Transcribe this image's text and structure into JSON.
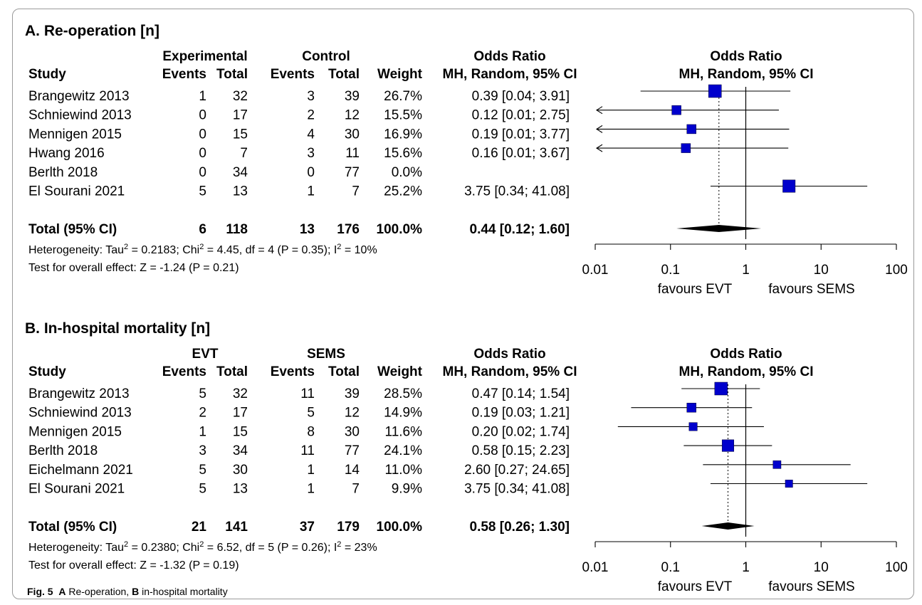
{
  "caption": {
    "fig": "Fig. 5",
    "a_letter": "A",
    "a_text": " Re-operation, ",
    "b_letter": "B",
    "b_text": " in-hospital mortality"
  },
  "colors": {
    "box": "#0000cc",
    "diamond": "#000000",
    "border": "#9a9a9a"
  },
  "chart_data": [
    {
      "type": "forest",
      "panel_title": "A. Re-operation [n]",
      "group1_label": "Experimental",
      "group2_label": "Control",
      "col_headers": {
        "study": "Study",
        "events1": "Events",
        "total1": "Total",
        "events2": "Events",
        "total2": "Total",
        "weight": "Weight",
        "or_top": "Odds Ratio",
        "or_bottom": "MH, Random, 95% CI"
      },
      "plot_header_top": "Odds Ratio",
      "plot_header_bottom": "MH, Random, 95% CI",
      "studies": [
        {
          "name": "Brangewitz 2013",
          "events1": "1",
          "total1": "32",
          "events2": "3",
          "total2": "39",
          "weight": "26.7%",
          "ci_text": "0.39 [0.04;  3.91]",
          "or": 0.39,
          "lo": 0.04,
          "hi": 3.91,
          "box": 1.0,
          "arrow_left": false
        },
        {
          "name": "Schniewind 2013",
          "events1": "0",
          "total1": "17",
          "events2": "2",
          "total2": "12",
          "weight": "15.5%",
          "ci_text": "0.12 [0.01;  2.75]",
          "or": 0.12,
          "lo": 0.01,
          "hi": 2.75,
          "box": 0.72,
          "arrow_left": true
        },
        {
          "name": "Mennigen 2015",
          "events1": "0",
          "total1": "15",
          "events2": "4",
          "total2": "30",
          "weight": "16.9%",
          "ci_text": "0.19 [0.01;  3.77]",
          "or": 0.19,
          "lo": 0.01,
          "hi": 3.77,
          "box": 0.72,
          "arrow_left": true
        },
        {
          "name": "Hwang 2016",
          "events1": "0",
          "total1": "7",
          "events2": "3",
          "total2": "11",
          "weight": "15.6%",
          "ci_text": "0.16 [0.01;  3.67]",
          "or": 0.16,
          "lo": 0.01,
          "hi": 3.67,
          "box": 0.72,
          "arrow_left": true
        },
        {
          "name": "Berlth 2018",
          "events1": "0",
          "total1": "34",
          "events2": "0",
          "total2": "77",
          "weight": "0.0%",
          "ci_text": "",
          "or": null,
          "lo": null,
          "hi": null,
          "box": 0,
          "arrow_left": false
        },
        {
          "name": "El Sourani 2021",
          "events1": "5",
          "total1": "13",
          "events2": "1",
          "total2": "7",
          "weight": "25.2%",
          "ci_text": "3.75 [0.34; 41.08]",
          "or": 3.75,
          "lo": 0.34,
          "hi": 41.08,
          "box": 0.97,
          "arrow_left": false
        }
      ],
      "total": {
        "label": "Total (95% CI)",
        "events1": "6",
        "total1": "118",
        "events2": "13",
        "total2": "176",
        "weight": "100.0%",
        "ci_text": "0.44 [0.12;  1.60]",
        "or": 0.44,
        "lo": 0.12,
        "hi": 1.6
      },
      "heterogeneity": {
        "prefix": "Heterogeneity: Tau",
        "tau2": " = 0.2183; Chi",
        "chi2": " = 4.45, df = 4 (P = 0.35); I",
        "i2": " = 10%",
        "sup": "2"
      },
      "overall_effect": "Test for overall effect: Z = -1.24 (P = 0.21)",
      "x_scale": "log",
      "xlim": [
        0.01,
        100
      ],
      "ticks": [
        "0.01",
        "0.1",
        "1",
        "10",
        "100"
      ],
      "tick_values": [
        0.01,
        0.1,
        1,
        10,
        100
      ],
      "favours_left": "favours EVT",
      "favours_right": "favours SEMS"
    },
    {
      "type": "forest",
      "panel_title": "B. In-hospital mortality [n]",
      "group1_label": "EVT",
      "group2_label": "SEMS",
      "col_headers": {
        "study": "Study",
        "events1": "Events",
        "total1": "Total",
        "events2": "Events",
        "total2": "Total",
        "weight": "Weight",
        "or_top": "Odds Ratio",
        "or_bottom": "MH, Random, 95% CI"
      },
      "plot_header_top": "Odds Ratio",
      "plot_header_bottom": "MH, Random, 95% CI",
      "studies": [
        {
          "name": "Brangewitz 2013",
          "events1": "5",
          "total1": "32",
          "events2": "11",
          "total2": "39",
          "weight": "28.5%",
          "ci_text": "0.47 [0.14;  1.54]",
          "or": 0.47,
          "lo": 0.14,
          "hi": 1.54,
          "box": 1.0,
          "arrow_left": false
        },
        {
          "name": "Schniewind 2013",
          "events1": "2",
          "total1": "17",
          "events2": "5",
          "total2": "12",
          "weight": "14.9%",
          "ci_text": "0.19 [0.03;  1.21]",
          "or": 0.19,
          "lo": 0.03,
          "hi": 1.21,
          "box": 0.72,
          "arrow_left": false
        },
        {
          "name": "Mennigen 2015",
          "events1": "1",
          "total1": "15",
          "events2": "8",
          "total2": "30",
          "weight": "11.6%",
          "ci_text": "0.20 [0.02;  1.74]",
          "or": 0.2,
          "lo": 0.02,
          "hi": 1.74,
          "box": 0.64,
          "arrow_left": false
        },
        {
          "name": "Berlth 2018",
          "events1": "3",
          "total1": "34",
          "events2": "11",
          "total2": "77",
          "weight": "24.1%",
          "ci_text": "0.58 [0.15;  2.23]",
          "or": 0.58,
          "lo": 0.15,
          "hi": 2.23,
          "box": 0.92,
          "arrow_left": false
        },
        {
          "name": "Eichelmann 2021",
          "events1": "5",
          "total1": "30",
          "events2": "1",
          "total2": "14",
          "weight": "11.0%",
          "ci_text": "2.60 [0.27; 24.65]",
          "or": 2.6,
          "lo": 0.27,
          "hi": 24.65,
          "box": 0.62,
          "arrow_left": false
        },
        {
          "name": "El Sourani 2021",
          "events1": "5",
          "total1": "13",
          "events2": "1",
          "total2": "7",
          "weight": "9.9%",
          "ci_text": "3.75 [0.34; 41.08]",
          "or": 3.75,
          "lo": 0.34,
          "hi": 41.08,
          "box": 0.58,
          "arrow_left": false
        }
      ],
      "total": {
        "label": "Total (95% CI)",
        "events1": "21",
        "total1": "141",
        "events2": "37",
        "total2": "179",
        "weight": "100.0%",
        "ci_text": "0.58 [0.26;  1.30]",
        "or": 0.58,
        "lo": 0.26,
        "hi": 1.3
      },
      "heterogeneity": {
        "prefix": "Heterogeneity: Tau",
        "tau2": " = 0.2380; Chi",
        "chi2": " = 6.52, df = 5 (P = 0.26); I",
        "i2": " = 23%",
        "sup": "2"
      },
      "overall_effect": "Test for overall effect: Z = -1.32 (P = 0.19)",
      "x_scale": "log",
      "xlim": [
        0.01,
        100
      ],
      "ticks": [
        "0.01",
        "0.1",
        "1",
        "10",
        "100"
      ],
      "tick_values": [
        0.01,
        0.1,
        1,
        10,
        100
      ],
      "favours_left": "favours EVT",
      "favours_right": "favours SEMS"
    }
  ]
}
